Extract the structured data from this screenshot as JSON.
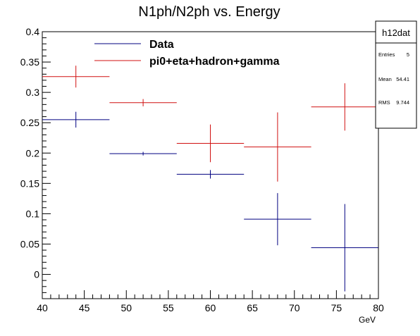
{
  "chart_data": {
    "type": "scatter",
    "title": "N1ph/N2ph vs. Energy",
    "xlabel": "GeV",
    "ylabel": "",
    "xlim": [
      40,
      80
    ],
    "ylim": [
      -0.04,
      0.4
    ],
    "x_ticks": [
      40,
      45,
      50,
      55,
      60,
      65,
      70,
      75,
      80
    ],
    "x_tick_labels": [
      "40",
      "45",
      "50",
      "55",
      "60",
      "65",
      "70",
      "75",
      "80"
    ],
    "y_ticks": [
      0,
      0.05,
      0.1,
      0.15,
      0.2,
      0.25,
      0.3,
      0.35,
      0.4
    ],
    "y_tick_labels": [
      "0",
      "0.05",
      "0.1",
      "0.15",
      "0.2",
      "0.25",
      "0.3",
      "0.35",
      "0.4"
    ],
    "series": [
      {
        "name": "Data",
        "color": "#000080",
        "points": [
          {
            "x": 44,
            "xlo": 40,
            "xhi": 48,
            "y": 0.255,
            "ylo": 0.242,
            "yhi": 0.268
          },
          {
            "x": 52,
            "xlo": 48,
            "xhi": 56,
            "y": 0.199,
            "ylo": 0.196,
            "yhi": 0.202
          },
          {
            "x": 60,
            "xlo": 56,
            "xhi": 64,
            "y": 0.165,
            "ylo": 0.158,
            "yhi": 0.172
          },
          {
            "x": 68,
            "xlo": 64,
            "xhi": 72,
            "y": 0.091,
            "ylo": 0.048,
            "yhi": 0.134
          },
          {
            "x": 76,
            "xlo": 72,
            "xhi": 80,
            "y": 0.044,
            "ylo": -0.028,
            "yhi": 0.116
          }
        ]
      },
      {
        "name": "pi0+eta+hadron+gamma",
        "color": "#d01010",
        "points": [
          {
            "x": 44,
            "xlo": 40,
            "xhi": 48,
            "y": 0.326,
            "ylo": 0.308,
            "yhi": 0.344
          },
          {
            "x": 52,
            "xlo": 48,
            "xhi": 56,
            "y": 0.283,
            "ylo": 0.277,
            "yhi": 0.289
          },
          {
            "x": 60,
            "xlo": 56,
            "xhi": 64,
            "y": 0.216,
            "ylo": 0.185,
            "yhi": 0.247
          },
          {
            "x": 68,
            "xlo": 64,
            "xhi": 72,
            "y": 0.21,
            "ylo": 0.153,
            "yhi": 0.267
          },
          {
            "x": 76,
            "xlo": 72,
            "xhi": 80,
            "y": 0.276,
            "ylo": 0.237,
            "yhi": 0.315
          }
        ]
      }
    ],
    "legend": {
      "placement": "top-left",
      "entries": [
        "Data",
        "pi0+eta+hadron+gamma"
      ]
    },
    "stats_box": {
      "name": "h12dat",
      "rows": [
        {
          "label": "Entries",
          "value": "5"
        },
        {
          "label": "Mean",
          "value": "54.41"
        },
        {
          "label": "RMS",
          "value": "9.744"
        }
      ]
    },
    "grid": false
  }
}
